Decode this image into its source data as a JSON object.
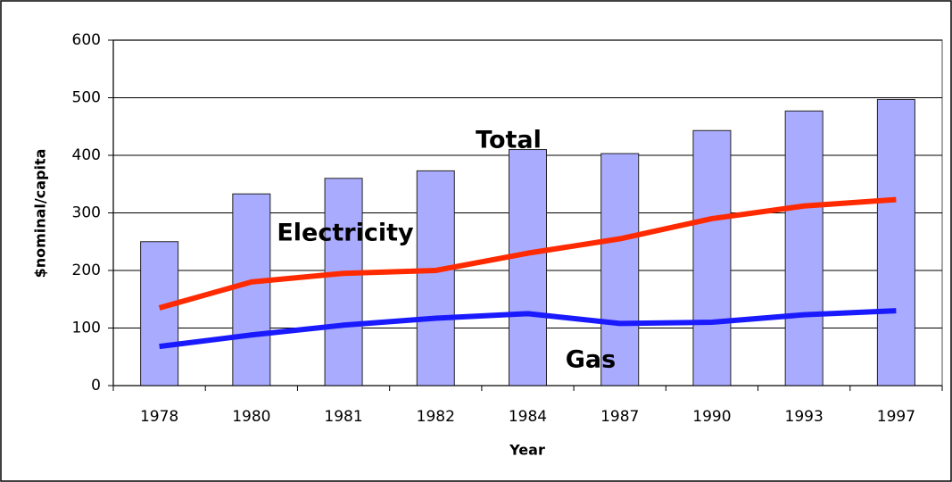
{
  "chart_data": {
    "type": "bar",
    "xlabel": "Year",
    "ylabel": "$nominal/capita",
    "categories": [
      "1978",
      "1980",
      "1981",
      "1982",
      "1984",
      "1987",
      "1990",
      "1993",
      "1997"
    ],
    "series": [
      {
        "name": "Total",
        "type": "bar",
        "color": "#a9abff",
        "values": [
          250,
          333,
          360,
          373,
          410,
          403,
          443,
          477,
          497
        ]
      },
      {
        "name": "Electricity",
        "type": "line",
        "color": "#ff2a00",
        "values": [
          135,
          180,
          195,
          200,
          230,
          255,
          290,
          312,
          323
        ]
      },
      {
        "name": "Gas",
        "type": "line",
        "color": "#1a1aff",
        "values": [
          68,
          88,
          105,
          117,
          125,
          108,
          110,
          123,
          130
        ]
      }
    ],
    "ylim": [
      0,
      600
    ],
    "yticks": [
      0,
      100,
      200,
      300,
      400,
      500,
      600
    ],
    "grid": true
  }
}
